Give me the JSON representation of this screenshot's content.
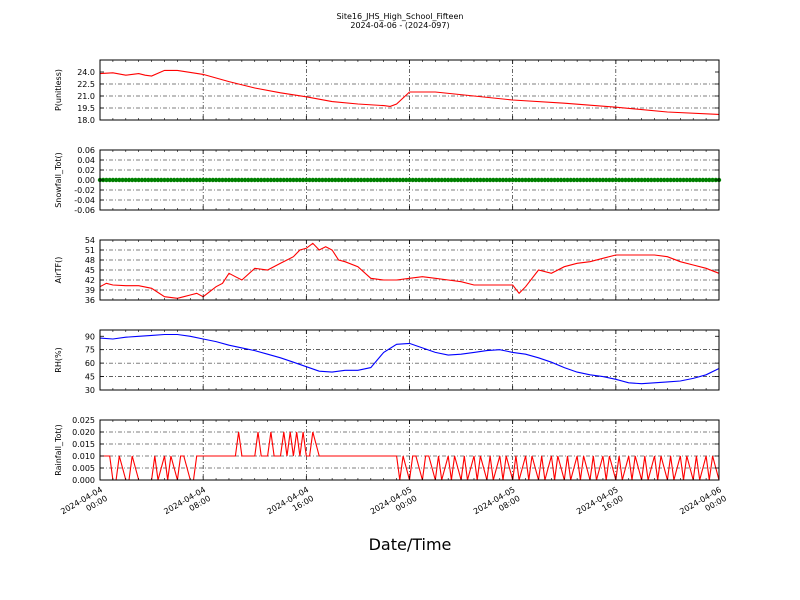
{
  "figure": {
    "title": "Site16_JHS_High_School_Fifteen",
    "subtitle": "2024-04-06 - (2024-097)",
    "xlabel": "Date/Time",
    "x_ticks": [
      {
        "line1": "2024-04-04",
        "line2": "00:00"
      },
      {
        "line1": "2024-04-04",
        "line2": "08:00"
      },
      {
        "line1": "2024-04-04",
        "line2": "16:00"
      },
      {
        "line1": "2024-04-05",
        "line2": "00:00"
      },
      {
        "line1": "2024-04-05",
        "line2": "08:00"
      },
      {
        "line1": "2024-04-05",
        "line2": "16:00"
      },
      {
        "line1": "2024-04-06",
        "line2": "00:00"
      }
    ]
  },
  "chart_data": [
    {
      "type": "line",
      "ylabel": "P(unitless)",
      "ylim": [
        18.0,
        25.5
      ],
      "yticks": [
        "18.0",
        "19.5",
        "21.0",
        "22.5",
        "24.0"
      ],
      "grid": true,
      "series": [
        {
          "color": "#ff0000",
          "x": [
            "2024-04-04 00:00",
            "2024-04-04 01:00",
            "2024-04-04 02:00",
            "2024-04-04 03:00",
            "2024-04-04 03:30",
            "2024-04-04 04:00",
            "2024-04-04 05:00",
            "2024-04-04 06:00",
            "2024-04-04 08:00",
            "2024-04-04 10:00",
            "2024-04-04 12:00",
            "2024-04-04 14:00",
            "2024-04-04 16:00",
            "2024-04-04 18:00",
            "2024-04-04 20:00",
            "2024-04-04 22:00",
            "2024-04-04 22:30",
            "2024-04-04 23:00",
            "2024-04-05 00:00",
            "2024-04-05 02:00",
            "2024-04-05 05:00",
            "2024-04-05 08:00",
            "2024-04-05 12:00",
            "2024-04-05 16:00",
            "2024-04-05 20:00",
            "2024-04-06 00:00"
          ],
          "values": [
            23.8,
            23.9,
            23.6,
            23.8,
            23.6,
            23.5,
            24.2,
            24.2,
            23.7,
            22.8,
            22.0,
            21.4,
            20.9,
            20.3,
            20.0,
            19.8,
            19.7,
            20.0,
            21.5,
            21.5,
            21.0,
            20.5,
            20.1,
            19.6,
            19.0,
            18.7
          ]
        }
      ]
    },
    {
      "type": "scatter",
      "ylabel": "Snowfall_Tot()",
      "ylim": [
        -0.06,
        0.06
      ],
      "yticks": [
        "-0.06",
        "-0.04",
        "-0.02",
        "0.00",
        "0.02",
        "0.04",
        "0.06"
      ],
      "grid": true,
      "series": [
        {
          "color": "#008000",
          "constant_value": 0.0,
          "x_range": [
            "2024-04-04 00:00",
            "2024-04-06 00:00"
          ],
          "interval_minutes": 15
        }
      ]
    },
    {
      "type": "line",
      "ylabel": "AirTF()",
      "ylim": [
        36,
        54
      ],
      "yticks": [
        "36",
        "39",
        "42",
        "45",
        "48",
        "51",
        "54"
      ],
      "grid": true,
      "series": [
        {
          "color": "#ff0000",
          "x": [
            "2024-04-04 00:00",
            "2024-04-04 00:30",
            "2024-04-04 01:00",
            "2024-04-04 02:00",
            "2024-04-04 03:00",
            "2024-04-04 04:00",
            "2024-04-04 05:00",
            "2024-04-04 06:00",
            "2024-04-04 06:30",
            "2024-04-04 07:00",
            "2024-04-04 07:30",
            "2024-04-04 08:00",
            "2024-04-04 09:00",
            "2024-04-04 09:30",
            "2024-04-04 10:00",
            "2024-04-04 10:30",
            "2024-04-04 11:00",
            "2024-04-04 12:00",
            "2024-04-04 13:00",
            "2024-04-04 14:00",
            "2024-04-04 14:30",
            "2024-04-04 15:00",
            "2024-04-04 15:30",
            "2024-04-04 16:00",
            "2024-04-04 16:30",
            "2024-04-04 17:00",
            "2024-04-04 17:30",
            "2024-04-04 18:00",
            "2024-04-04 18:30",
            "2024-04-04 19:00",
            "2024-04-04 20:00",
            "2024-04-04 21:00",
            "2024-04-04 22:00",
            "2024-04-04 23:00",
            "2024-04-05 00:00",
            "2024-04-05 01:00",
            "2024-04-05 02:00",
            "2024-04-05 03:00",
            "2024-04-05 04:00",
            "2024-04-05 05:00",
            "2024-04-05 06:00",
            "2024-04-05 07:00",
            "2024-04-05 07:30",
            "2024-04-05 08:00",
            "2024-04-05 08:30",
            "2024-04-05 09:00",
            "2024-04-05 10:00",
            "2024-04-05 11:00",
            "2024-04-05 12:00",
            "2024-04-05 13:00",
            "2024-04-05 14:00",
            "2024-04-05 15:00",
            "2024-04-05 16:00",
            "2024-04-05 17:00",
            "2024-04-05 18:00",
            "2024-04-05 19:00",
            "2024-04-05 20:00",
            "2024-04-05 21:00",
            "2024-04-05 22:00",
            "2024-04-05 23:00",
            "2024-04-06 00:00"
          ],
          "values": [
            40,
            41,
            40.5,
            40.3,
            40.3,
            39.5,
            37,
            36.5,
            37,
            37.5,
            38,
            37,
            40,
            41,
            44,
            43,
            42,
            45.5,
            45,
            47,
            48,
            49,
            51,
            51.5,
            53,
            51,
            52,
            51,
            48,
            47.5,
            46,
            42.5,
            42,
            42,
            42.5,
            43,
            42.5,
            42,
            41.5,
            40.5,
            40.5,
            40.5,
            40.5,
            40.5,
            38,
            40,
            45,
            44,
            46,
            47,
            47.5,
            48.5,
            49.5,
            49.5,
            49.5,
            49.5,
            49,
            47.5,
            46.5,
            45.5,
            44
          ]
        }
      ]
    },
    {
      "type": "line",
      "ylabel": "RH(%)",
      "ylim": [
        30,
        97
      ],
      "yticks": [
        "30",
        "45",
        "60",
        "75",
        "90"
      ],
      "grid": true,
      "series": [
        {
          "color": "#0000ff",
          "x": [
            "2024-04-04 00:00",
            "2024-04-04 01:00",
            "2024-04-04 02:00",
            "2024-04-04 03:00",
            "2024-04-04 04:00",
            "2024-04-04 05:00",
            "2024-04-04 06:00",
            "2024-04-04 07:00",
            "2024-04-04 08:00",
            "2024-04-04 09:00",
            "2024-04-04 10:00",
            "2024-04-04 11:00",
            "2024-04-04 12:00",
            "2024-04-04 13:00",
            "2024-04-04 14:00",
            "2024-04-04 15:00",
            "2024-04-04 16:00",
            "2024-04-04 17:00",
            "2024-04-04 18:00",
            "2024-04-04 19:00",
            "2024-04-04 20:00",
            "2024-04-04 21:00",
            "2024-04-04 22:00",
            "2024-04-04 23:00",
            "2024-04-05 00:00",
            "2024-04-05 01:00",
            "2024-04-05 02:00",
            "2024-04-05 03:00",
            "2024-04-05 04:00",
            "2024-04-05 05:00",
            "2024-04-05 06:00",
            "2024-04-05 07:00",
            "2024-04-05 08:00",
            "2024-04-05 09:00",
            "2024-04-05 10:00",
            "2024-04-05 11:00",
            "2024-04-05 12:00",
            "2024-04-05 13:00",
            "2024-04-05 14:00",
            "2024-04-05 15:00",
            "2024-04-05 16:00",
            "2024-04-05 17:00",
            "2024-04-05 18:00",
            "2024-04-05 19:00",
            "2024-04-05 20:00",
            "2024-04-05 21:00",
            "2024-04-05 22:00",
            "2024-04-05 23:00",
            "2024-04-06 00:00"
          ],
          "values": [
            88,
            87,
            89,
            90,
            91,
            92,
            92,
            90,
            87,
            84,
            80,
            77,
            74,
            70,
            66,
            61,
            56,
            51,
            50,
            52,
            52,
            55,
            72,
            81,
            82,
            77,
            72,
            69,
            70,
            72,
            74,
            75,
            72,
            70,
            66,
            61,
            55,
            50,
            47,
            45,
            42,
            38,
            37,
            38,
            39,
            40,
            43,
            47,
            54
          ]
        }
      ]
    },
    {
      "type": "line",
      "ylabel": "Rainfall_Tot()",
      "ylim": [
        0.0,
        0.025
      ],
      "yticks": [
        "0.000",
        "0.005",
        "0.010",
        "0.015",
        "0.020",
        "0.025"
      ],
      "grid": true,
      "series": [
        {
          "color": "#ff0000",
          "x": [
            "2024-04-04 00:00",
            "2024-04-04 00:45",
            "2024-04-04 01:00",
            "2024-04-04 01:15",
            "2024-04-04 01:30",
            "2024-04-04 02:00",
            "2024-04-04 02:15",
            "2024-04-04 02:30",
            "2024-04-04 03:00",
            "2024-04-04 03:15",
            "2024-04-04 03:30",
            "2024-04-04 04:00",
            "2024-04-04 04:15",
            "2024-04-04 04:30",
            "2024-04-04 05:00",
            "2024-04-04 05:15",
            "2024-04-04 05:30",
            "2024-04-04 06:00",
            "2024-04-04 06:15",
            "2024-04-04 06:30",
            "2024-04-04 07:00",
            "2024-04-04 07:15",
            "2024-04-04 07:30",
            "2024-04-04 10:30",
            "2024-04-04 10:45",
            "2024-04-04 11:00",
            "2024-04-04 12:00",
            "2024-04-04 12:15",
            "2024-04-04 12:30",
            "2024-04-04 13:00",
            "2024-04-04 13:15",
            "2024-04-04 13:30",
            "2024-04-04 14:00",
            "2024-04-04 14:15",
            "2024-04-04 14:30",
            "2024-04-04 14:45",
            "2024-04-04 15:00",
            "2024-04-04 15:15",
            "2024-04-04 15:30",
            "2024-04-04 15:45",
            "2024-04-04 16:00",
            "2024-04-04 16:15",
            "2024-04-04 16:30",
            "2024-04-04 17:00",
            "2024-04-04 17:15",
            "2024-04-04 17:30",
            "2024-04-04 23:00",
            "2024-04-04 23:15",
            "2024-04-04 23:30",
            "2024-04-05 00:00",
            "2024-04-05 00:15",
            "2024-04-05 00:30",
            "2024-04-05 01:00",
            "2024-04-05 01:15",
            "2024-04-05 01:30",
            "2024-04-05 02:00",
            "2024-04-05 02:15",
            "2024-04-05 02:30",
            "2024-04-05 03:00",
            "2024-04-05 03:15",
            "2024-04-05 03:30",
            "2024-04-05 04:00",
            "2024-04-05 04:15",
            "2024-04-05 04:30",
            "2024-04-05 05:00",
            "2024-04-05 05:15",
            "2024-04-05 05:30",
            "2024-04-05 06:00",
            "2024-04-05 06:15",
            "2024-04-05 06:30",
            "2024-04-05 07:00",
            "2024-04-05 07:15",
            "2024-04-05 07:30",
            "2024-04-05 08:00",
            "2024-04-05 08:15",
            "2024-04-05 08:30",
            "2024-04-05 09:00",
            "2024-04-05 09:15",
            "2024-04-05 09:30",
            "2024-04-05 10:00",
            "2024-04-05 10:15",
            "2024-04-05 10:30",
            "2024-04-05 11:00",
            "2024-04-05 11:15",
            "2024-04-05 11:30",
            "2024-04-05 12:00",
            "2024-04-05 12:15",
            "2024-04-05 12:30",
            "2024-04-05 13:00",
            "2024-04-05 13:15",
            "2024-04-05 13:30",
            "2024-04-05 14:00",
            "2024-04-05 14:15",
            "2024-04-05 14:30",
            "2024-04-05 15:00",
            "2024-04-05 15:15",
            "2024-04-05 15:30",
            "2024-04-05 16:00",
            "2024-04-05 16:15",
            "2024-04-05 16:30",
            "2024-04-05 17:00",
            "2024-04-05 17:15",
            "2024-04-05 17:30",
            "2024-04-05 18:00",
            "2024-04-05 18:15",
            "2024-04-05 18:30",
            "2024-04-05 19:00",
            "2024-04-05 19:15",
            "2024-04-05 19:30",
            "2024-04-05 20:00",
            "2024-04-05 20:15",
            "2024-04-05 20:30",
            "2024-04-05 21:00",
            "2024-04-05 21:15",
            "2024-04-05 21:30",
            "2024-04-05 22:00",
            "2024-04-05 22:15",
            "2024-04-05 22:30",
            "2024-04-05 23:00",
            "2024-04-05 23:15",
            "2024-04-05 23:30",
            "2024-04-06 00:00"
          ],
          "values": [
            0.01,
            0.01,
            0.0,
            0.0,
            0.01,
            0.0,
            0.0,
            0.01,
            0.0,
            0.0,
            0.0,
            0.0,
            0.01,
            0.0,
            0.01,
            0.0,
            0.01,
            0.0,
            0.01,
            0.01,
            0.0,
            0.0,
            0.01,
            0.01,
            0.02,
            0.01,
            0.01,
            0.02,
            0.01,
            0.01,
            0.02,
            0.01,
            0.01,
            0.02,
            0.01,
            0.02,
            0.01,
            0.02,
            0.01,
            0.02,
            0.01,
            0.01,
            0.02,
            0.01,
            0.01,
            0.01,
            0.01,
            0.0,
            0.01,
            0.0,
            0.01,
            0.01,
            0.0,
            0.01,
            0.01,
            0.0,
            0.01,
            0.0,
            0.01,
            0.0,
            0.01,
            0.0,
            0.01,
            0.0,
            0.01,
            0.0,
            0.01,
            0.0,
            0.01,
            0.0,
            0.01,
            0.0,
            0.01,
            0.0,
            0.01,
            0.0,
            0.01,
            0.0,
            0.01,
            0.0,
            0.01,
            0.0,
            0.01,
            0.0,
            0.01,
            0.0,
            0.01,
            0.0,
            0.01,
            0.0,
            0.01,
            0.0,
            0.01,
            0.0,
            0.01,
            0.0,
            0.01,
            0.0,
            0.01,
            0.0,
            0.01,
            0.0,
            0.01,
            0.0,
            0.01,
            0.0,
            0.01,
            0.0,
            0.01,
            0.0,
            0.01,
            0.0,
            0.01,
            0.0,
            0.01,
            0.0,
            0.01,
            0.0,
            0.01,
            0.0,
            0.01,
            0.0
          ]
        }
      ]
    }
  ]
}
